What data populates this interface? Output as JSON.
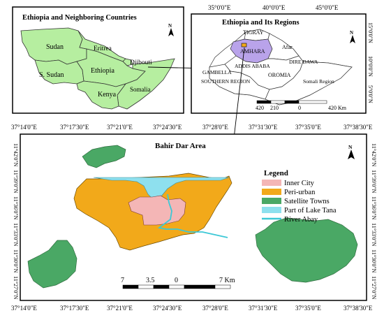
{
  "inset1": {
    "title": "Ethiopia and Neighboring Countries",
    "north_label": "N",
    "countries": [
      "Sudan",
      "Eritrea",
      "Djibouti",
      "S. Sudan",
      "Ethiopia",
      "Somalia",
      "Kenya"
    ]
  },
  "inset2": {
    "title": "Ethiopia and Its Regions",
    "north_label": "N",
    "top_ticks": [
      "35°0'0\"E",
      "40°0'0\"E",
      "45°0'0\"E"
    ],
    "right_ticks": [
      "15°0'0\"N",
      "10°0'0\"N",
      "5°0'0\"N"
    ],
    "regions": [
      "TIGRAY",
      "AMHARA",
      "Afar",
      "DIRE DAWA",
      "ADDIS ABABA",
      "GAMBELLA",
      "OROMIA",
      "SOUTHERN REGION",
      "Somali Region"
    ],
    "scale_labels": [
      "420",
      "210",
      "0",
      "420 Km"
    ]
  },
  "main": {
    "title": "Bahir Dar Area",
    "north_label": "N",
    "top_ticks": [
      "37°14'0\"E",
      "37°17'30\"E",
      "37°21'0\"E",
      "37°24'30\"E",
      "37°28'0\"E",
      "37°31'30\"E",
      "37°35'0\"E",
      "37°38'30\"E"
    ],
    "bottom_ticks": [
      "37°14'0\"E",
      "37°17'30\"E",
      "37°21'0\"E",
      "37°24'30\"E",
      "37°28'0\"E",
      "37°31'30\"E",
      "37°35'0\"E",
      "37°38'30\"E"
    ],
    "left_ticks": [
      "11°42'0\"N",
      "11°39'0\"N",
      "11°36'0\"N",
      "11°33'0\"N",
      "11°30'0\"N",
      "11°27'0\"N"
    ],
    "right_ticks": [
      "11°42'0\"N",
      "11°39'0\"N",
      "11°36'0\"N",
      "11°33'0\"N",
      "11°30'0\"N",
      "11°27'0\"N"
    ],
    "legend": {
      "title": "Legend",
      "items": [
        {
          "label": "Inner City",
          "color": "#f4b6b6"
        },
        {
          "label": "Peri-urban",
          "color": "#f2a91a"
        },
        {
          "label": "Satellite Towns",
          "color": "#4aa865"
        },
        {
          "label": "Part of Lake Tana",
          "color": "#8ee0ee"
        },
        {
          "label": "River Abay",
          "color": "#3cc8d6"
        }
      ]
    },
    "scale_labels": [
      "7",
      "3.5",
      "0",
      "7 Km"
    ]
  },
  "colors": {
    "light_green": "#b6eea0",
    "amhara_purple": "#b9a3ea",
    "bahir_dar_marker": "#f2a91a"
  }
}
